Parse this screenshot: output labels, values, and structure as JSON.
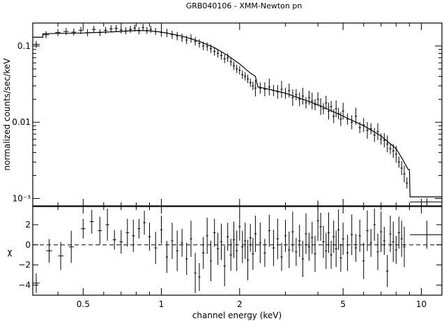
{
  "chart_data": {
    "type": "scatter",
    "title": "GRB040106 - XMM-Newton pn",
    "xlabel": "channel energy (keV)",
    "x_scale": "log",
    "xlim": [
      0.32,
      12
    ],
    "x_ticks": [
      0.5,
      1,
      2,
      5,
      10
    ],
    "x_tick_labels": [
      "0.5",
      "1",
      "2",
      "5",
      "10"
    ],
    "panels": [
      {
        "name": "spectrum",
        "ylabel": "normalized counts/sec/keV",
        "y_scale": "log",
        "ylim": [
          0.0008,
          0.2
        ],
        "y_ticks": [
          0.1,
          0.01,
          0.001
        ],
        "y_tick_labels": [
          "0.1",
          "0.01",
          "10⁻³"
        ],
        "data_points": [
          [
            0.33,
            0.105
          ],
          [
            0.36,
            0.14
          ],
          [
            0.4,
            0.15
          ],
          [
            0.43,
            0.155
          ],
          [
            0.46,
            0.152
          ],
          [
            0.49,
            0.16
          ],
          [
            0.52,
            0.15
          ],
          [
            0.55,
            0.165
          ],
          [
            0.58,
            0.15
          ],
          [
            0.61,
            0.16
          ],
          [
            0.64,
            0.168
          ],
          [
            0.67,
            0.17
          ],
          [
            0.7,
            0.162
          ],
          [
            0.73,
            0.158
          ],
          [
            0.76,
            0.165
          ],
          [
            0.79,
            0.172
          ],
          [
            0.82,
            0.158
          ],
          [
            0.85,
            0.175
          ],
          [
            0.88,
            0.16
          ],
          [
            0.91,
            0.165
          ],
          [
            0.95,
            0.155
          ],
          [
            1.0,
            0.15
          ],
          [
            1.05,
            0.148
          ],
          [
            1.1,
            0.14
          ],
          [
            1.15,
            0.135
          ],
          [
            1.2,
            0.128
          ],
          [
            1.25,
            0.12
          ],
          [
            1.3,
            0.125
          ],
          [
            1.35,
            0.115
          ],
          [
            1.4,
            0.108
          ],
          [
            1.45,
            0.1
          ],
          [
            1.5,
            0.098
          ],
          [
            1.55,
            0.092
          ],
          [
            1.6,
            0.085
          ],
          [
            1.65,
            0.08
          ],
          [
            1.7,
            0.075
          ],
          [
            1.75,
            0.068
          ],
          [
            1.8,
            0.07
          ],
          [
            1.85,
            0.062
          ],
          [
            1.9,
            0.055
          ],
          [
            1.95,
            0.05
          ],
          [
            2.0,
            0.048
          ],
          [
            2.05,
            0.042
          ],
          [
            2.1,
            0.04
          ],
          [
            2.15,
            0.037
          ],
          [
            2.2,
            0.033
          ],
          [
            2.25,
            0.03
          ],
          [
            2.3,
            0.028
          ],
          [
            2.4,
            0.028
          ],
          [
            2.5,
            0.027
          ],
          [
            2.6,
            0.029
          ],
          [
            2.7,
            0.026
          ],
          [
            2.8,
            0.025
          ],
          [
            2.9,
            0.027
          ],
          [
            3.0,
            0.024
          ],
          [
            3.1,
            0.026
          ],
          [
            3.2,
            0.021
          ],
          [
            3.3,
            0.023
          ],
          [
            3.4,
            0.02
          ],
          [
            3.5,
            0.022
          ],
          [
            3.6,
            0.018
          ],
          [
            3.7,
            0.021
          ],
          [
            3.8,
            0.019
          ],
          [
            3.9,
            0.017
          ],
          [
            4.0,
            0.02
          ],
          [
            4.1,
            0.016
          ],
          [
            4.2,
            0.015
          ],
          [
            4.3,
            0.018
          ],
          [
            4.4,
            0.014
          ],
          [
            4.5,
            0.016
          ],
          [
            4.6,
            0.012
          ],
          [
            4.7,
            0.015
          ],
          [
            4.8,
            0.013
          ],
          [
            4.9,
            0.011
          ],
          [
            5.0,
            0.014
          ],
          [
            5.2,
            0.011
          ],
          [
            5.4,
            0.01
          ],
          [
            5.6,
            0.012
          ],
          [
            5.8,
            0.0085
          ],
          [
            6.0,
            0.0092
          ],
          [
            6.2,
            0.0078
          ],
          [
            6.4,
            0.0082
          ],
          [
            6.6,
            0.0068
          ],
          [
            6.8,
            0.0075
          ],
          [
            7.0,
            0.006
          ],
          [
            7.2,
            0.0058
          ],
          [
            7.4,
            0.0052
          ],
          [
            7.6,
            0.0045
          ],
          [
            7.8,
            0.0042
          ],
          [
            8.0,
            0.0038
          ],
          [
            8.2,
            0.003
          ],
          [
            8.4,
            0.0025
          ],
          [
            8.6,
            0.0021
          ],
          [
            8.8,
            0.0016
          ],
          [
            10.5,
            0.0009
          ]
        ],
        "model_line": [
          [
            0.32,
            0.13
          ],
          [
            0.35,
            0.13
          ],
          [
            0.35,
            0.145
          ],
          [
            0.5,
            0.148
          ],
          [
            0.7,
            0.155
          ],
          [
            0.8,
            0.16
          ],
          [
            0.9,
            0.158
          ],
          [
            1.0,
            0.152
          ],
          [
            1.2,
            0.135
          ],
          [
            1.4,
            0.115
          ],
          [
            1.6,
            0.095
          ],
          [
            1.8,
            0.075
          ],
          [
            2.0,
            0.058
          ],
          [
            2.2,
            0.044
          ],
          [
            2.3,
            0.04
          ],
          [
            2.35,
            0.029
          ],
          [
            2.6,
            0.027
          ],
          [
            3.0,
            0.024
          ],
          [
            3.5,
            0.02
          ],
          [
            4.0,
            0.017
          ],
          [
            5.0,
            0.012
          ],
          [
            6.0,
            0.009
          ],
          [
            7.0,
            0.0066
          ],
          [
            8.0,
            0.0045
          ],
          [
            8.5,
            0.0032
          ],
          [
            8.9,
            0.0024
          ],
          [
            9.0,
            0.0024
          ],
          [
            9.05,
            0.00105
          ],
          [
            12.0,
            0.00105
          ]
        ]
      },
      {
        "name": "residuals",
        "ylabel": "χ",
        "ylim": [
          -5,
          3.8
        ],
        "y_ticks": [
          -4,
          -2,
          0,
          2
        ],
        "y_tick_labels": [
          "−4",
          "−2",
          "0",
          "2"
        ],
        "reference_line": 0,
        "residuals": [
          [
            0.33,
            -3.8
          ],
          [
            0.37,
            -0.6
          ],
          [
            0.41,
            -1.1
          ],
          [
            0.45,
            -0.2
          ],
          [
            0.5,
            1.6
          ],
          [
            0.54,
            2.3
          ],
          [
            0.58,
            1.4
          ],
          [
            0.62,
            2.0
          ],
          [
            0.66,
            0.5
          ],
          [
            0.7,
            0.3
          ],
          [
            0.74,
            1.2
          ],
          [
            0.78,
            0.9
          ],
          [
            0.82,
            1.6
          ],
          [
            0.86,
            2.2
          ],
          [
            0.9,
            0.8
          ],
          [
            0.95,
            -0.3
          ],
          [
            1.0,
            1.5
          ],
          [
            1.05,
            -1.2
          ],
          [
            1.1,
            0.4
          ],
          [
            1.15,
            -0.6
          ],
          [
            1.2,
            0.2
          ],
          [
            1.25,
            -1.4
          ],
          [
            1.3,
            0.6
          ],
          [
            1.35,
            -2.8
          ],
          [
            1.4,
            -3.2
          ],
          [
            1.45,
            -0.8
          ],
          [
            1.5,
            0.9
          ],
          [
            1.55,
            -1.6
          ],
          [
            1.6,
            1.2
          ],
          [
            1.65,
            -0.4
          ],
          [
            1.7,
            0.3
          ],
          [
            1.75,
            -2.1
          ],
          [
            1.8,
            0.8
          ],
          [
            1.85,
            -1.0
          ],
          [
            1.9,
            0.5
          ],
          [
            1.95,
            -0.6
          ],
          [
            2.0,
            1.8
          ],
          [
            2.05,
            -0.2
          ],
          [
            2.1,
            0.4
          ],
          [
            2.15,
            -1.5
          ],
          [
            2.2,
            0.7
          ],
          [
            2.25,
            -0.9
          ],
          [
            2.3,
            1.1
          ],
          [
            2.4,
            0.2
          ],
          [
            2.5,
            -0.8
          ],
          [
            2.6,
            1.4
          ],
          [
            2.7,
            -0.3
          ],
          [
            2.8,
            0.6
          ],
          [
            2.9,
            -1.2
          ],
          [
            3.0,
            0.9
          ],
          [
            3.1,
            -0.5
          ],
          [
            3.2,
            1.3
          ],
          [
            3.3,
            -0.7
          ],
          [
            3.4,
            0.4
          ],
          [
            3.5,
            -1.4
          ],
          [
            3.6,
            1.1
          ],
          [
            3.7,
            -0.2
          ],
          [
            3.8,
            0.7
          ],
          [
            3.9,
            -0.9
          ],
          [
            4.0,
            2.4
          ],
          [
            4.1,
            1.8
          ],
          [
            4.2,
            0.3
          ],
          [
            4.3,
            -0.6
          ],
          [
            4.4,
            1.2
          ],
          [
            4.5,
            -1.0
          ],
          [
            4.6,
            0.8
          ],
          [
            4.7,
            -0.4
          ],
          [
            4.8,
            1.5
          ],
          [
            4.9,
            -1.3
          ],
          [
            5.0,
            0.6
          ],
          [
            5.2,
            -0.8
          ],
          [
            5.4,
            1.0
          ],
          [
            5.6,
            -0.3
          ],
          [
            5.8,
            0.9
          ],
          [
            6.0,
            -1.6
          ],
          [
            6.2,
            1.4
          ],
          [
            6.4,
            0.2
          ],
          [
            6.6,
            2.0
          ],
          [
            6.8,
            -0.7
          ],
          [
            7.0,
            1.3
          ],
          [
            7.2,
            0.4
          ],
          [
            7.4,
            -2.6
          ],
          [
            7.6,
            1.1
          ],
          [
            7.8,
            0.3
          ],
          [
            8.0,
            -0.5
          ],
          [
            8.2,
            1.2
          ],
          [
            8.4,
            0.6
          ],
          [
            8.6,
            -0.2
          ],
          [
            10.5,
            1.0
          ]
        ]
      }
    ],
    "grid": false,
    "legend": "none"
  }
}
